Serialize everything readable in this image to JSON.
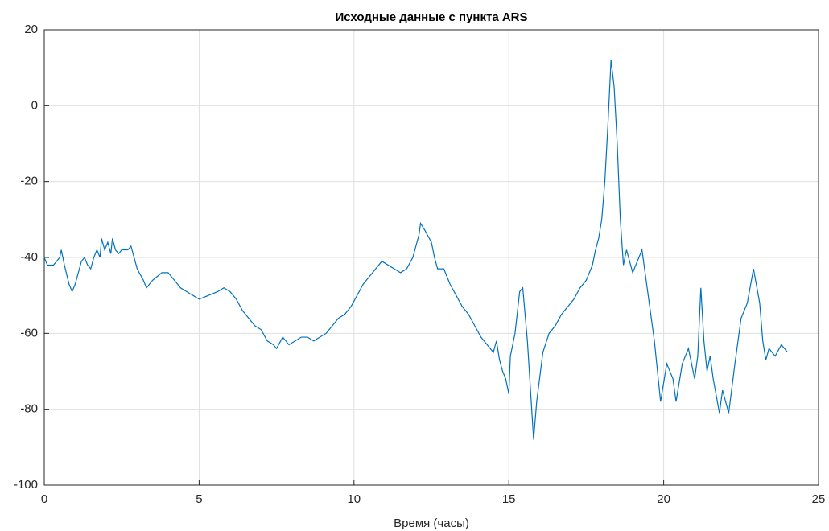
{
  "chart_data": {
    "type": "line",
    "title": "Исходные данные с пункта ARS",
    "xlabel": "Время (часы)",
    "xlim": [
      0,
      25
    ],
    "xticks": [
      0,
      5,
      10,
      15,
      20,
      25
    ],
    "ylim": [
      -100,
      20
    ],
    "yticks": [
      -100,
      -80,
      -60,
      -40,
      -20,
      0,
      20
    ],
    "grid": true,
    "series": [
      {
        "color": "#0072bd",
        "x": [
          0,
          0.1,
          0.3,
          0.5,
          0.55,
          0.65,
          0.8,
          0.9,
          1.0,
          1.1,
          1.2,
          1.3,
          1.4,
          1.5,
          1.6,
          1.7,
          1.8,
          1.85,
          1.95,
          2.05,
          2.15,
          2.2,
          2.3,
          2.4,
          2.5,
          2.7,
          2.8,
          2.9,
          3.0,
          3.2,
          3.3,
          3.5,
          3.8,
          4.0,
          4.2,
          4.4,
          4.6,
          4.8,
          5.0,
          5.3,
          5.6,
          5.8,
          6.0,
          6.2,
          6.4,
          6.6,
          6.8,
          7.0,
          7.2,
          7.4,
          7.5,
          7.7,
          7.9,
          8.1,
          8.3,
          8.5,
          8.7,
          8.9,
          9.1,
          9.3,
          9.5,
          9.7,
          9.9,
          10.1,
          10.3,
          10.5,
          10.7,
          10.9,
          11.1,
          11.3,
          11.5,
          11.7,
          11.9,
          12.0,
          12.1,
          12.15,
          12.3,
          12.5,
          12.6,
          12.7,
          12.9,
          13.1,
          13.3,
          13.5,
          13.7,
          13.9,
          14.1,
          14.3,
          14.5,
          14.6,
          14.7,
          14.8,
          14.9,
          15.0,
          15.05,
          15.2,
          15.35,
          15.45,
          15.6,
          15.7,
          15.8,
          15.9,
          16.1,
          16.3,
          16.5,
          16.7,
          16.9,
          17.1,
          17.3,
          17.5,
          17.7,
          17.8,
          17.9,
          18.0,
          18.1,
          18.2,
          18.3,
          18.4,
          18.5,
          18.6,
          18.7,
          18.8,
          19.0,
          19.2,
          19.3,
          19.5,
          19.7,
          19.9,
          20.1,
          20.3,
          20.4,
          20.6,
          20.8,
          21.0,
          21.1,
          21.2,
          21.3,
          21.4,
          21.5,
          21.6,
          21.8,
          21.9,
          22.0,
          22.1,
          22.3,
          22.5,
          22.7,
          22.9,
          23.1,
          23.2,
          23.3,
          23.4,
          23.6,
          23.8,
          24.0
        ],
        "values": [
          -40,
          -42,
          -42,
          -40,
          -38,
          -42,
          -47,
          -49,
          -47,
          -44,
          -41,
          -40,
          -42,
          -43,
          -40,
          -38,
          -40,
          -35,
          -38,
          -36,
          -39,
          -35,
          -38,
          -39,
          -38,
          -38,
          -37,
          -40,
          -43,
          -46,
          -48,
          -46,
          -44,
          -44,
          -46,
          -48,
          -49,
          -50,
          -51,
          -50,
          -49,
          -48,
          -49,
          -51,
          -54,
          -56,
          -58,
          -59,
          -62,
          -63,
          -64,
          -61,
          -63,
          -62,
          -61,
          -61,
          -62,
          -61,
          -60,
          -58,
          -56,
          -55,
          -53,
          -50,
          -47,
          -45,
          -43,
          -41,
          -42,
          -43,
          -44,
          -43,
          -40,
          -37,
          -34,
          -31,
          -33,
          -36,
          -40,
          -43,
          -43,
          -47,
          -50,
          -53,
          -55,
          -58,
          -61,
          -63,
          -65,
          -62,
          -67,
          -70,
          -72,
          -76,
          -66,
          -60,
          -49,
          -48,
          -62,
          -75,
          -88,
          -78,
          -65,
          -60,
          -58,
          -55,
          -53,
          -51,
          -48,
          -46,
          -42,
          -38,
          -35,
          -30,
          -20,
          -5,
          12,
          5,
          -10,
          -30,
          -42,
          -38,
          -44,
          -40,
          -38,
          -50,
          -62,
          -78,
          -68,
          -72,
          -78,
          -68,
          -64,
          -72,
          -66,
          -48,
          -62,
          -70,
          -66,
          -72,
          -81,
          -75,
          -78,
          -81,
          -68,
          -56,
          -52,
          -43,
          -52,
          -62,
          -67,
          -64,
          -66,
          -63,
          -65
        ]
      }
    ]
  }
}
